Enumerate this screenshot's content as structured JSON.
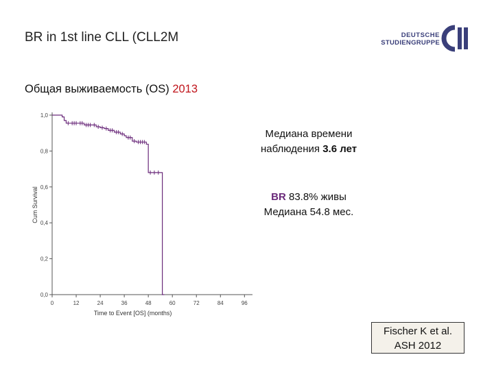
{
  "slide": {
    "title": "BR in 1st line CLL (CLL2M",
    "subtitle_text": "Общая выживаемость (OS)",
    "subtitle_year": "2013"
  },
  "logo": {
    "line1": "DEUTSCHE",
    "line2": "STUDIENGRUPPE",
    "mark": "cll"
  },
  "annotations": {
    "median_follow_up_line1": "Медиана времени",
    "median_follow_up_line2_prefix": "наблюдения",
    "median_follow_up_value": "3.6 лет",
    "br_label": "BR",
    "br_alive": "83.8% живы",
    "median_os": "Медиана 54.8 мес."
  },
  "citation": {
    "line1": "Fischer K et al.",
    "line2": "ASH 2012"
  },
  "colors": {
    "curve": "#6a2a7a",
    "year": "#c0141b",
    "axis": "#555555"
  },
  "chart_data": {
    "type": "line",
    "xlabel": "Time to Event [OS] (months)",
    "ylabel": "Cum Survival",
    "x_ticks": [
      0,
      12,
      24,
      36,
      48,
      60,
      72,
      84,
      96
    ],
    "y_ticks": [
      0.0,
      0.2,
      0.4,
      0.6,
      0.8,
      1.0
    ],
    "y_tick_labels": [
      "0,0",
      "0,2",
      "0,4",
      "0,6",
      "0,8",
      "1,0"
    ],
    "xlim": [
      0,
      100
    ],
    "ylim": [
      0,
      1.0
    ],
    "series": [
      {
        "step_points": [
          [
            0,
            1.0
          ],
          [
            5,
            0.99
          ],
          [
            6,
            0.97
          ],
          [
            7,
            0.955
          ],
          [
            16,
            0.945
          ],
          [
            22,
            0.935
          ],
          [
            24,
            0.93
          ],
          [
            26,
            0.925
          ],
          [
            28,
            0.915
          ],
          [
            31,
            0.905
          ],
          [
            34,
            0.895
          ],
          [
            36,
            0.885
          ],
          [
            37,
            0.875
          ],
          [
            40,
            0.855
          ],
          [
            42,
            0.85
          ],
          [
            47,
            0.838
          ],
          [
            48,
            0.68
          ],
          [
            55,
            0.68
          ],
          [
            55,
            0.0
          ],
          [
            56,
            0.0
          ]
        ],
        "censor_times": [
          8,
          10,
          11,
          12,
          14,
          15,
          17,
          18,
          19,
          21,
          23,
          25,
          27,
          29,
          30,
          32,
          33,
          35,
          38,
          39,
          41,
          43,
          44,
          45,
          46,
          49,
          51,
          53
        ]
      }
    ]
  }
}
